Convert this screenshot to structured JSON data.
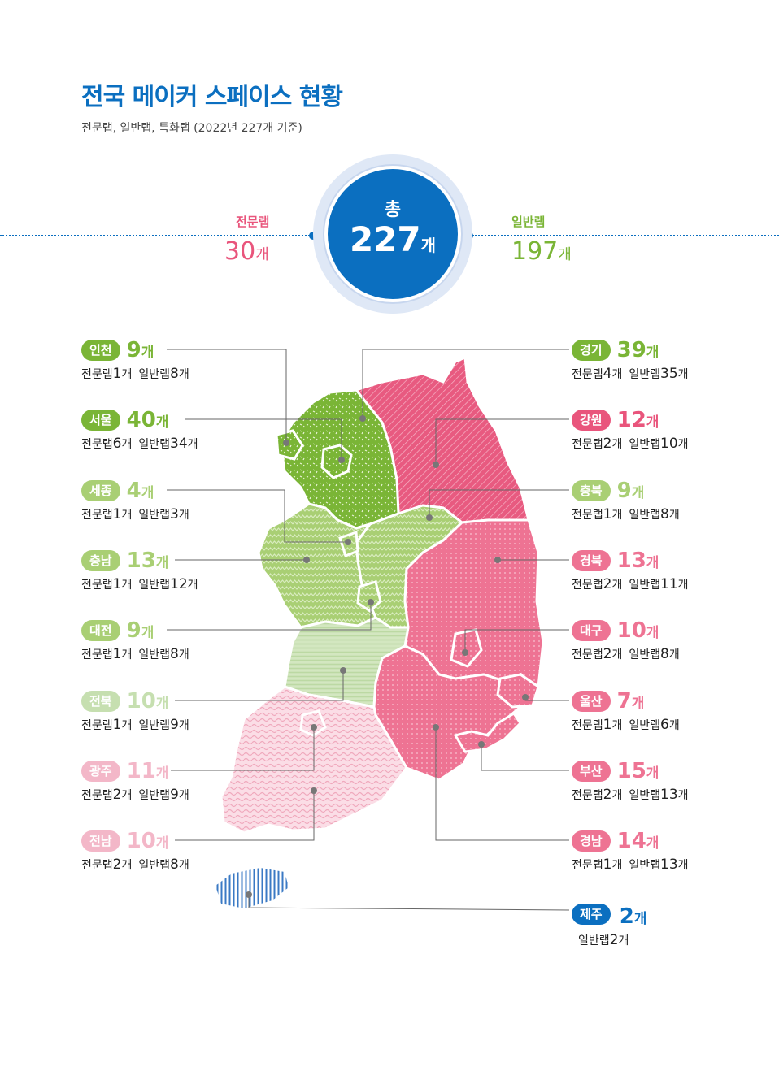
{
  "title": "전국 메이커 스페이스 현황",
  "subtitle": "전문랩, 일반랩, 특화랩 (2022년 227개 기준)",
  "colors": {
    "blue": "#0b6fc0",
    "pink": "#e9557c",
    "green": "#7ab536",
    "lightgreen": "#a9cf74",
    "paleGreen": "#c6dfb0",
    "palePink": "#f3b7c8",
    "gray": "#777777"
  },
  "total": {
    "label": "총",
    "value": "227",
    "unit": "개"
  },
  "specialist": {
    "label": "전문랩",
    "value": "30",
    "unit": "개"
  },
  "general": {
    "label": "일반랩",
    "value": "197",
    "unit": "개"
  },
  "regions": [
    {
      "name": "인천",
      "total": "9",
      "unit": "개",
      "spec_label": "전문랩",
      "spec": "1",
      "gen_label": "일반랩",
      "gen": "8"
    },
    {
      "name": "서울",
      "total": "40",
      "unit": "개",
      "spec_label": "전문랩",
      "spec": "6",
      "gen_label": "일반랩",
      "gen": "34"
    },
    {
      "name": "세종",
      "total": "4",
      "unit": "개",
      "spec_label": "전문랩",
      "spec": "1",
      "gen_label": "일반랩",
      "gen": "3"
    },
    {
      "name": "충남",
      "total": "13",
      "unit": "개",
      "spec_label": "전문랩",
      "spec": "1",
      "gen_label": "일반랩",
      "gen": "12"
    },
    {
      "name": "대전",
      "total": "9",
      "unit": "개",
      "spec_label": "전문랩",
      "spec": "1",
      "gen_label": "일반랩",
      "gen": "8"
    },
    {
      "name": "전북",
      "total": "10",
      "unit": "개",
      "spec_label": "전문랩",
      "spec": "1",
      "gen_label": "일반랩",
      "gen": "9"
    },
    {
      "name": "광주",
      "total": "11",
      "unit": "개",
      "spec_label": "전문랩",
      "spec": "2",
      "gen_label": "일반랩",
      "gen": "9"
    },
    {
      "name": "전남",
      "total": "10",
      "unit": "개",
      "spec_label": "전문랩",
      "spec": "2",
      "gen_label": "일반랩",
      "gen": "8"
    },
    {
      "name": "경기",
      "total": "39",
      "unit": "개",
      "spec_label": "전문랩",
      "spec": "4",
      "gen_label": "일반랩",
      "gen": "35"
    },
    {
      "name": "강원",
      "total": "12",
      "unit": "개",
      "spec_label": "전문랩",
      "spec": "2",
      "gen_label": "일반랩",
      "gen": "10"
    },
    {
      "name": "충북",
      "total": "9",
      "unit": "개",
      "spec_label": "전문랩",
      "spec": "1",
      "gen_label": "일반랩",
      "gen": "8"
    },
    {
      "name": "경북",
      "total": "13",
      "unit": "개",
      "spec_label": "전문랩",
      "spec": "2",
      "gen_label": "일반랩",
      "gen": "11"
    },
    {
      "name": "대구",
      "total": "10",
      "unit": "개",
      "spec_label": "전문랩",
      "spec": "2",
      "gen_label": "일반랩",
      "gen": "8"
    },
    {
      "name": "울산",
      "total": "7",
      "unit": "개",
      "spec_label": "전문랩",
      "spec": "1",
      "gen_label": "일반랩",
      "gen": "6"
    },
    {
      "name": "부산",
      "total": "15",
      "unit": "개",
      "spec_label": "전문랩",
      "spec": "2",
      "gen_label": "일반랩",
      "gen": "13"
    },
    {
      "name": "경남",
      "total": "14",
      "unit": "개",
      "spec_label": "전문랩",
      "spec": "1",
      "gen_label": "일반랩",
      "gen": "13"
    },
    {
      "name": "제주",
      "total": "2",
      "unit": "개",
      "gen_label": "일반랩",
      "gen": "2"
    }
  ]
}
